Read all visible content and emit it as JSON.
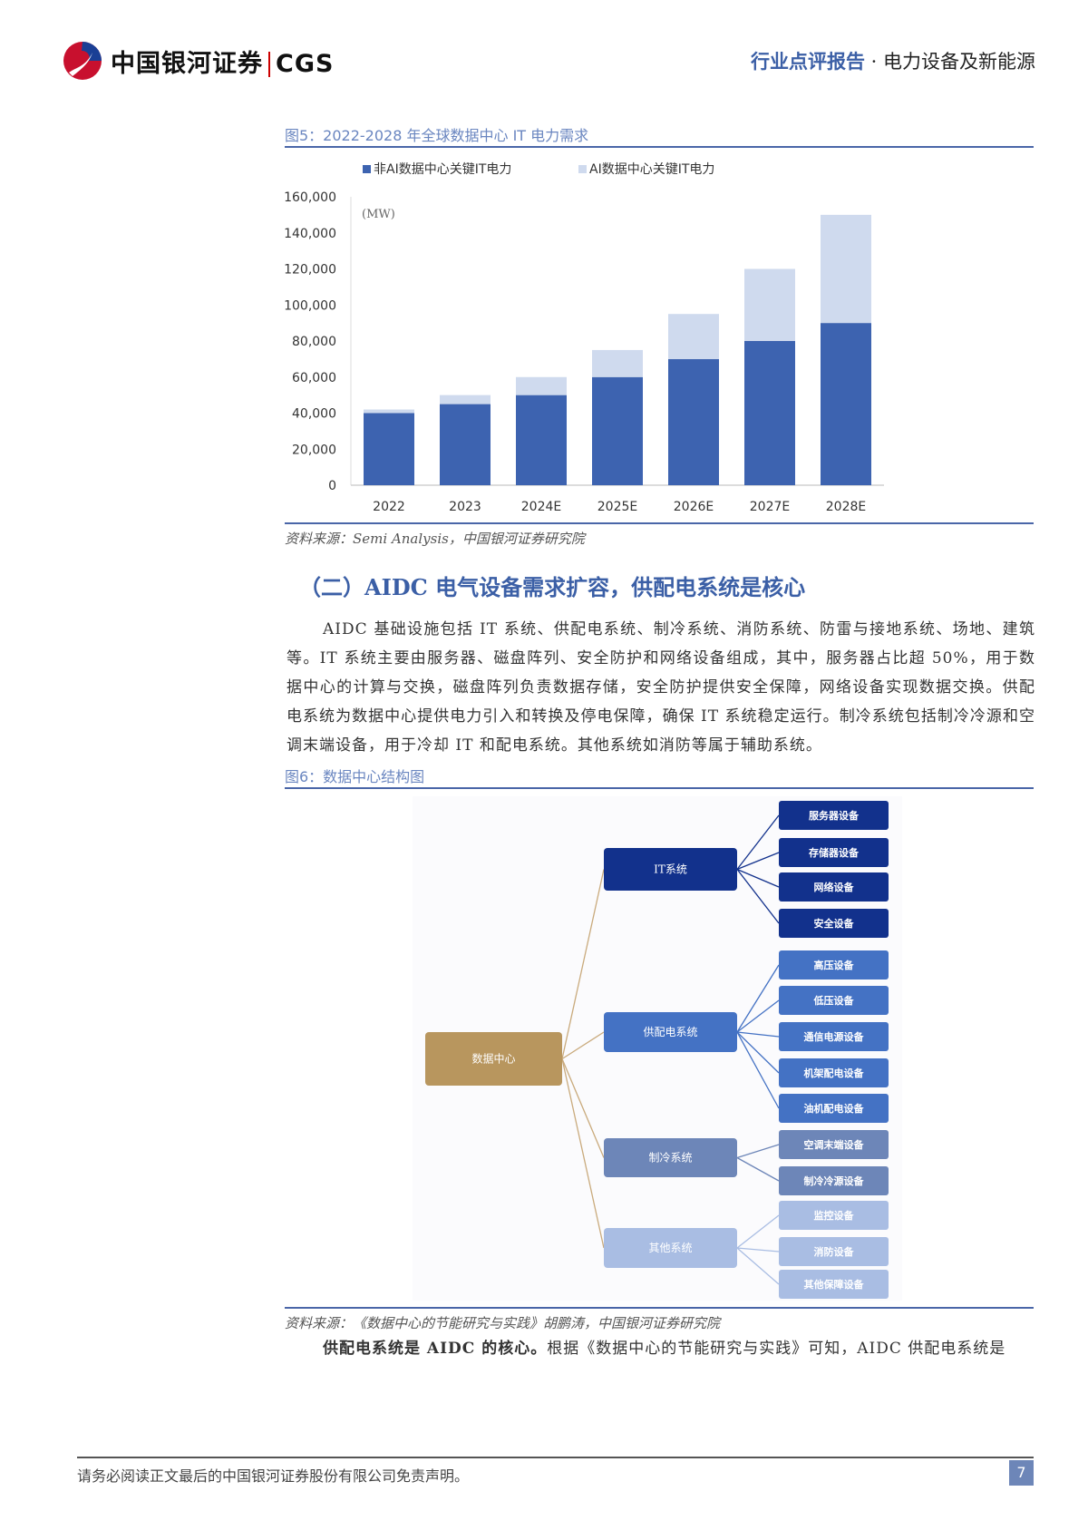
{
  "header": {
    "logo_text": "中国银河证券",
    "logo_latin": "CGS",
    "report_kind": "行业点评报告",
    "separator": " · ",
    "sector": "电力设备及新能源"
  },
  "figure5": {
    "caption": "图5：2022-2028 年全球数据中心 IT 电力需求",
    "source": "资料来源：Semi Analysis，中国银河证券研究院"
  },
  "chart_data": {
    "type": "bar",
    "stacked": true,
    "unit_label": "(MW)",
    "categories": [
      "2022",
      "2023",
      "2024E",
      "2025E",
      "2026E",
      "2027E",
      "2028E"
    ],
    "series": [
      {
        "name": "非AI数据中心关键IT电力",
        "color": "#3d63b0",
        "values": [
          40000,
          45000,
          50000,
          60000,
          70000,
          80000,
          90000
        ]
      },
      {
        "name": "AI数据中心关键IT电力",
        "color": "#cfdaee",
        "values": [
          2000,
          5000,
          10000,
          15000,
          25000,
          40000,
          60000
        ]
      }
    ],
    "yticks": [
      "0",
      "20,000",
      "40,000",
      "60,000",
      "80,000",
      "100,000",
      "120,000",
      "140,000",
      "160,000"
    ],
    "ylim": [
      0,
      160000
    ],
    "grid": false,
    "legend": "top"
  },
  "section": {
    "heading": "（二）AIDC 电气设备需求扩容，供配电系统是核心",
    "paragraph": "AIDC 基础设施包括 IT 系统、供配电系统、制冷系统、消防系统、防雷与接地系统、场地、建筑等。IT 系统主要由服务器、磁盘阵列、安全防护和网络设备组成，其中，服务器占比超 50%，用于数据中心的计算与交换，磁盘阵列负责数据存储，安全防护提供安全保障，网络设备实现数据交换。供配电系统为数据中心提供电力引入和转换及停电保障，确保 IT 系统稳定运行。制冷系统包括制冷冷源和空调末端设备，用于冷却 IT 和配电系统。其他系统如消防等属于辅助系统。"
  },
  "figure6": {
    "caption": "图6：数据中心结构图",
    "source": "资料来源：《数据中心的节能研究与实践》胡鹏涛，中国银河证券研究院",
    "root": {
      "label": "数据中心",
      "color": "#b8965e"
    },
    "link_color": "#c9aa7c",
    "systems": [
      {
        "label": "IT系统",
        "color": "#12318c",
        "items": [
          "服务器设备",
          "存储器设备",
          "网络设备",
          "安全设备"
        ]
      },
      {
        "label": "供配电系统",
        "color": "#4472c4",
        "items": [
          "高压设备",
          "低压设备",
          "通信电源设备",
          "机架配电设备",
          "油机配电设备"
        ]
      },
      {
        "label": "制冷系统",
        "color": "#6d86b8",
        "items": [
          "空调末端设备",
          "制冷冷源设备"
        ]
      },
      {
        "label": "其他系统",
        "color": "#a9bde3",
        "items": [
          "监控设备",
          "消防设备",
          "其他保障设备"
        ]
      }
    ]
  },
  "closing": {
    "bold_lead": "供配电系统是 AIDC 的核心。",
    "text": "根据《数据中心的节能研究与实践》可知，AIDC 供配电系统是"
  },
  "footer": {
    "disclaimer": "请务必阅读正文最后的中国银河证券股份有限公司免责声明。",
    "page": "7"
  }
}
